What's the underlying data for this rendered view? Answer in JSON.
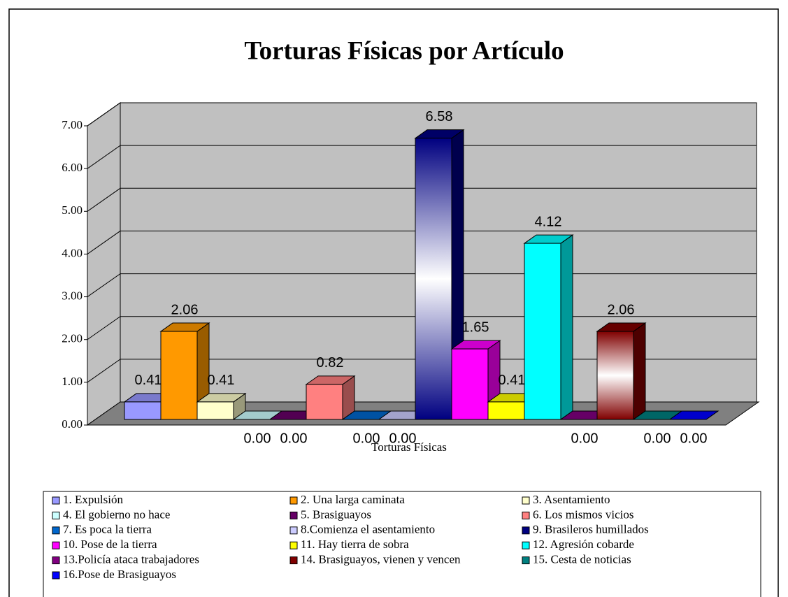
{
  "chart_data": {
    "type": "bar3d",
    "title": "Torturas Físicas por Artículo",
    "categories": [
      "Torturas Físicas"
    ],
    "ylim": [
      0,
      7
    ],
    "yticks": [
      {
        "value": 0,
        "label": "0.00"
      },
      {
        "value": 1,
        "label": "1.00"
      },
      {
        "value": 2,
        "label": "2.00"
      },
      {
        "value": 3,
        "label": "3.00"
      },
      {
        "value": 4,
        "label": "4.00"
      },
      {
        "value": 5,
        "label": "5.00"
      },
      {
        "value": 6,
        "label": "6.00"
      },
      {
        "value": 7,
        "label": "7.00"
      }
    ],
    "grid": true,
    "legend": "bottom",
    "series": [
      {
        "name": "1. Expulsión",
        "color": "#9999ff",
        "values": [
          0.41
        ],
        "value_labels": [
          "0.41"
        ]
      },
      {
        "name": "2. Una larga caminata",
        "color": "#ff9900",
        "values": [
          2.06
        ],
        "value_labels": [
          "2.06"
        ]
      },
      {
        "name": "3. Asentamiento",
        "color": "#ffffcc",
        "values": [
          0.41
        ],
        "value_labels": [
          "0.41"
        ]
      },
      {
        "name": "4. El gobierno no hace",
        "color": "#ccffff",
        "values": [
          0
        ],
        "value_labels": [
          "0.00"
        ]
      },
      {
        "name": "5. Brasiguayos",
        "color": "#660066",
        "values": [
          0
        ],
        "value_labels": [
          "0.00"
        ]
      },
      {
        "name": "6. Los mismos vicios",
        "color": "#ff8080",
        "values": [
          0.82
        ],
        "value_labels": [
          "0.82"
        ]
      },
      {
        "name": "7. Es poca la tierra",
        "color": "#0066cc",
        "values": [
          0
        ],
        "value_labels": [
          "0.00"
        ]
      },
      {
        "name": "8.Comienza el asentamiento",
        "color": "#ccccff",
        "values": [
          0
        ],
        "value_labels": [
          "0.00"
        ]
      },
      {
        "name": "9. Brasileros humillados",
        "color": "#000080",
        "gradient": true,
        "values": [
          6.58
        ],
        "value_labels": [
          "6.58"
        ]
      },
      {
        "name": "10. Pose de la tierra",
        "color": "#ff00ff",
        "values": [
          1.65
        ],
        "value_labels": [
          "1.65"
        ]
      },
      {
        "name": "11. Hay tierra de sobra",
        "color": "#ffff00",
        "values": [
          0.41
        ],
        "value_labels": [
          "0.41"
        ]
      },
      {
        "name": "12. Agresión cobarde",
        "color": "#00ffff",
        "values": [
          4.12
        ],
        "value_labels": [
          "4.12"
        ]
      },
      {
        "name": "13.Policía ataca trabajadores",
        "color": "#800080",
        "values": [
          0
        ],
        "value_labels": [
          "0.00"
        ]
      },
      {
        "name": "14. Brasiguayos, vienen y vencen",
        "color": "#800000",
        "gradient": true,
        "values": [
          2.06
        ],
        "value_labels": [
          "2.06"
        ]
      },
      {
        "name": "15. Cesta de noticias",
        "color": "#008080",
        "values": [
          0
        ],
        "value_labels": [
          "0.00"
        ]
      },
      {
        "name": "16.Pose de Brasiguayos",
        "color": "#0000ff",
        "values": [
          0
        ],
        "value_labels": [
          "0.00"
        ]
      }
    ]
  }
}
